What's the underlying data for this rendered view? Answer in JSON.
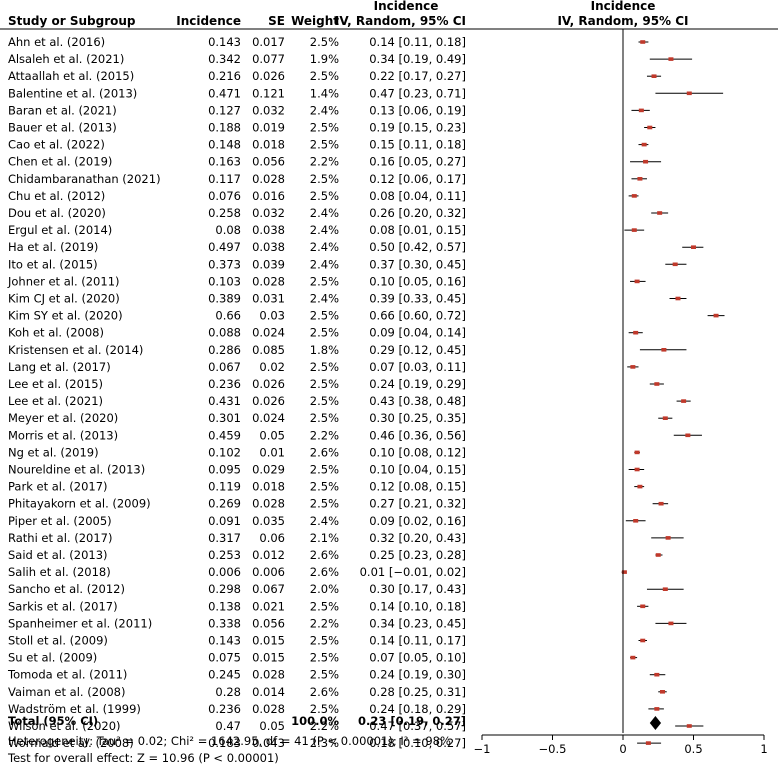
{
  "chart_data": {
    "type": "forest",
    "headers": {
      "study": "Study or Subgroup",
      "incidence": "Incidence",
      "se": "SE",
      "weight": "Weight",
      "ci_group": "Incidence",
      "ci_sub": "IV, Random, 95% CI",
      "plot_group": "Incidence",
      "plot_sub": "IV, Random, 95% CI"
    },
    "studies": [
      {
        "name": "Ahn et al. (2016)",
        "incidence": "0.143",
        "se": "0.017",
        "weight": "2.5%",
        "ci_text": "0.14 [0.11, 0.18]",
        "est": 0.14,
        "lo": 0.11,
        "hi": 0.18
      },
      {
        "name": "Alsaleh et al. (2021)",
        "incidence": "0.342",
        "se": "0.077",
        "weight": "1.9%",
        "ci_text": "0.34 [0.19, 0.49]",
        "est": 0.34,
        "lo": 0.19,
        "hi": 0.49
      },
      {
        "name": "Attaallah et al. (2015)",
        "incidence": "0.216",
        "se": "0.026",
        "weight": "2.5%",
        "ci_text": "0.22 [0.17, 0.27]",
        "est": 0.22,
        "lo": 0.17,
        "hi": 0.27
      },
      {
        "name": "Balentine et al. (2013)",
        "incidence": "0.471",
        "se": "0.121",
        "weight": "1.4%",
        "ci_text": "0.47 [0.23, 0.71]",
        "est": 0.47,
        "lo": 0.23,
        "hi": 0.71
      },
      {
        "name": "Baran et al. (2021)",
        "incidence": "0.127",
        "se": "0.032",
        "weight": "2.4%",
        "ci_text": "0.13 [0.06, 0.19]",
        "est": 0.13,
        "lo": 0.06,
        "hi": 0.19
      },
      {
        "name": "Bauer et al. (2013)",
        "incidence": "0.188",
        "se": "0.019",
        "weight": "2.5%",
        "ci_text": "0.19 [0.15, 0.23]",
        "est": 0.19,
        "lo": 0.15,
        "hi": 0.23
      },
      {
        "name": "Cao et al. (2022)",
        "incidence": "0.148",
        "se": "0.018",
        "weight": "2.5%",
        "ci_text": "0.15 [0.11, 0.18]",
        "est": 0.15,
        "lo": 0.11,
        "hi": 0.18
      },
      {
        "name": "Chen et al. (2019)",
        "incidence": "0.163",
        "se": "0.056",
        "weight": "2.2%",
        "ci_text": "0.16 [0.05, 0.27]",
        "est": 0.16,
        "lo": 0.05,
        "hi": 0.27
      },
      {
        "name": "Chidambaranathan (2021)",
        "incidence": "0.117",
        "se": "0.028",
        "weight": "2.5%",
        "ci_text": "0.12 [0.06, 0.17]",
        "est": 0.12,
        "lo": 0.06,
        "hi": 0.17
      },
      {
        "name": "Chu et al. (2012)",
        "incidence": "0.076",
        "se": "0.016",
        "weight": "2.5%",
        "ci_text": "0.08 [0.04, 0.11]",
        "est": 0.08,
        "lo": 0.04,
        "hi": 0.11
      },
      {
        "name": "Dou et al. (2020)",
        "incidence": "0.258",
        "se": "0.032",
        "weight": "2.4%",
        "ci_text": "0.26 [0.20, 0.32]",
        "est": 0.26,
        "lo": 0.2,
        "hi": 0.32
      },
      {
        "name": "Ergul et al. (2014)",
        "incidence": "0.08",
        "se": "0.038",
        "weight": "2.4%",
        "ci_text": "0.08 [0.01, 0.15]",
        "est": 0.08,
        "lo": 0.01,
        "hi": 0.15
      },
      {
        "name": "Ha et al. (2019)",
        "incidence": "0.497",
        "se": "0.038",
        "weight": "2.4%",
        "ci_text": "0.50 [0.42, 0.57]",
        "est": 0.5,
        "lo": 0.42,
        "hi": 0.57
      },
      {
        "name": "Ito et al. (2015)",
        "incidence": "0.373",
        "se": "0.039",
        "weight": "2.4%",
        "ci_text": "0.37 [0.30, 0.45]",
        "est": 0.37,
        "lo": 0.3,
        "hi": 0.45
      },
      {
        "name": "Johner et al. (2011)",
        "incidence": "0.103",
        "se": "0.028",
        "weight": "2.5%",
        "ci_text": "0.10 [0.05, 0.16]",
        "est": 0.1,
        "lo": 0.05,
        "hi": 0.16
      },
      {
        "name": "Kim CJ et al. (2020)",
        "incidence": "0.389",
        "se": "0.031",
        "weight": "2.4%",
        "ci_text": "0.39 [0.33, 0.45]",
        "est": 0.39,
        "lo": 0.33,
        "hi": 0.45
      },
      {
        "name": "Kim SY et al. (2020)",
        "incidence": "0.66",
        "se": "0.03",
        "weight": "2.5%",
        "ci_text": "0.66 [0.60, 0.72]",
        "est": 0.66,
        "lo": 0.6,
        "hi": 0.72
      },
      {
        "name": "Koh et al. (2008)",
        "incidence": "0.088",
        "se": "0.024",
        "weight": "2.5%",
        "ci_text": "0.09 [0.04, 0.14]",
        "est": 0.09,
        "lo": 0.04,
        "hi": 0.14
      },
      {
        "name": "Kristensen et al. (2014)",
        "incidence": "0.286",
        "se": "0.085",
        "weight": "1.8%",
        "ci_text": "0.29 [0.12, 0.45]",
        "est": 0.29,
        "lo": 0.12,
        "hi": 0.45
      },
      {
        "name": "Lang et al. (2017)",
        "incidence": "0.067",
        "se": "0.02",
        "weight": "2.5%",
        "ci_text": "0.07 [0.03, 0.11]",
        "est": 0.07,
        "lo": 0.03,
        "hi": 0.11
      },
      {
        "name": "Lee et al. (2015)",
        "incidence": "0.236",
        "se": "0.026",
        "weight": "2.5%",
        "ci_text": "0.24 [0.19, 0.29]",
        "est": 0.24,
        "lo": 0.19,
        "hi": 0.29
      },
      {
        "name": "Lee et al. (2021)",
        "incidence": "0.431",
        "se": "0.026",
        "weight": "2.5%",
        "ci_text": "0.43 [0.38, 0.48]",
        "est": 0.43,
        "lo": 0.38,
        "hi": 0.48
      },
      {
        "name": "Meyer et al. (2020)",
        "incidence": "0.301",
        "se": "0.024",
        "weight": "2.5%",
        "ci_text": "0.30 [0.25, 0.35]",
        "est": 0.3,
        "lo": 0.25,
        "hi": 0.35
      },
      {
        "name": "Morris et al. (2013)",
        "incidence": "0.459",
        "se": "0.05",
        "weight": "2.2%",
        "ci_text": "0.46 [0.36, 0.56]",
        "est": 0.46,
        "lo": 0.36,
        "hi": 0.56
      },
      {
        "name": "Ng et al. (2019)",
        "incidence": "0.102",
        "se": "0.01",
        "weight": "2.6%",
        "ci_text": "0.10 [0.08, 0.12]",
        "est": 0.1,
        "lo": 0.08,
        "hi": 0.12
      },
      {
        "name": "Noureldine et al. (2013)",
        "incidence": "0.095",
        "se": "0.029",
        "weight": "2.5%",
        "ci_text": "0.10 [0.04, 0.15]",
        "est": 0.1,
        "lo": 0.04,
        "hi": 0.15
      },
      {
        "name": "Park et al. (2017)",
        "incidence": "0.119",
        "se": "0.018",
        "weight": "2.5%",
        "ci_text": "0.12 [0.08, 0.15]",
        "est": 0.12,
        "lo": 0.08,
        "hi": 0.15
      },
      {
        "name": "Phitayakorn et al. (2009)",
        "incidence": "0.269",
        "se": "0.028",
        "weight": "2.5%",
        "ci_text": "0.27 [0.21, 0.32]",
        "est": 0.27,
        "lo": 0.21,
        "hi": 0.32
      },
      {
        "name": "Piper et al. (2005)",
        "incidence": "0.091",
        "se": "0.035",
        "weight": "2.4%",
        "ci_text": "0.09 [0.02, 0.16]",
        "est": 0.09,
        "lo": 0.02,
        "hi": 0.16
      },
      {
        "name": "Rathi et al. (2017)",
        "incidence": "0.317",
        "se": "0.06",
        "weight": "2.1%",
        "ci_text": "0.32 [0.20, 0.43]",
        "est": 0.32,
        "lo": 0.2,
        "hi": 0.43
      },
      {
        "name": "Said et al. (2013)",
        "incidence": "0.253",
        "se": "0.012",
        "weight": "2.6%",
        "ci_text": "0.25 [0.23, 0.28]",
        "est": 0.25,
        "lo": 0.23,
        "hi": 0.28
      },
      {
        "name": "Salih et al. (2018)",
        "incidence": "0.006",
        "se": "0.006",
        "weight": "2.6%",
        "ci_text": "0.01 [−0.01, 0.02]",
        "est": 0.01,
        "lo": -0.01,
        "hi": 0.02
      },
      {
        "name": "Sancho et al. (2012)",
        "incidence": "0.298",
        "se": "0.067",
        "weight": "2.0%",
        "ci_text": "0.30 [0.17, 0.43]",
        "est": 0.3,
        "lo": 0.17,
        "hi": 0.43
      },
      {
        "name": "Sarkis et al. (2017)",
        "incidence": "0.138",
        "se": "0.021",
        "weight": "2.5%",
        "ci_text": "0.14 [0.10, 0.18]",
        "est": 0.14,
        "lo": 0.1,
        "hi": 0.18
      },
      {
        "name": "Spanheimer et al. (2011)",
        "incidence": "0.338",
        "se": "0.056",
        "weight": "2.2%",
        "ci_text": "0.34 [0.23, 0.45]",
        "est": 0.34,
        "lo": 0.23,
        "hi": 0.45
      },
      {
        "name": "Stoll et al. (2009)",
        "incidence": "0.143",
        "se": "0.015",
        "weight": "2.5%",
        "ci_text": "0.14 [0.11, 0.17]",
        "est": 0.14,
        "lo": 0.11,
        "hi": 0.17
      },
      {
        "name": "Su et al. (2009)",
        "incidence": "0.075",
        "se": "0.015",
        "weight": "2.5%",
        "ci_text": "0.07 [0.05, 0.10]",
        "est": 0.07,
        "lo": 0.05,
        "hi": 0.1
      },
      {
        "name": "Tomoda et al. (2011)",
        "incidence": "0.245",
        "se": "0.028",
        "weight": "2.5%",
        "ci_text": "0.24 [0.19, 0.30]",
        "est": 0.24,
        "lo": 0.19,
        "hi": 0.3
      },
      {
        "name": "Vaiman et al. (2008)",
        "incidence": "0.28",
        "se": "0.014",
        "weight": "2.6%",
        "ci_text": "0.28 [0.25, 0.31]",
        "est": 0.28,
        "lo": 0.25,
        "hi": 0.31
      },
      {
        "name": "Wadström et al. (1999)",
        "incidence": "0.236",
        "se": "0.028",
        "weight": "2.5%",
        "ci_text": "0.24 [0.18, 0.29]",
        "est": 0.24,
        "lo": 0.18,
        "hi": 0.29
      },
      {
        "name": "Wilson et al. (2020)",
        "incidence": "0.47",
        "se": "0.05",
        "weight": "2.2%",
        "ci_text": "0.47 [0.37, 0.57]",
        "est": 0.47,
        "lo": 0.37,
        "hi": 0.57
      },
      {
        "name": "Wormald et al. (2008)",
        "incidence": "0.183",
        "se": "0.043",
        "weight": "2.3%",
        "ci_text": "0.18 [0.10, 0.27]",
        "est": 0.18,
        "lo": 0.1,
        "hi": 0.27
      }
    ],
    "total": {
      "label": "Total (95% CI)",
      "weight": "100.0%",
      "ci_text": "0.23 [0.19, 0.27]",
      "est": 0.23,
      "lo": 0.19,
      "hi": 0.27
    },
    "heterogeneity": "Heterogeneity: Tau² = 0.02; Chi² = 1642.95, df = 41 (P < 0.00001); I² = 98%",
    "overall_effect": "Test for overall effect: Z = 10.96 (P < 0.00001)",
    "x_axis": {
      "min": -1,
      "max": 1,
      "ticks": [
        -1,
        -0.5,
        0,
        0.5,
        1
      ],
      "tick_labels": [
        "−1",
        "−0.5",
        "0",
        "0.5",
        "1"
      ]
    },
    "colors": {
      "marker": "#c0392b",
      "line": "#000000",
      "diamond": "#000000"
    }
  }
}
